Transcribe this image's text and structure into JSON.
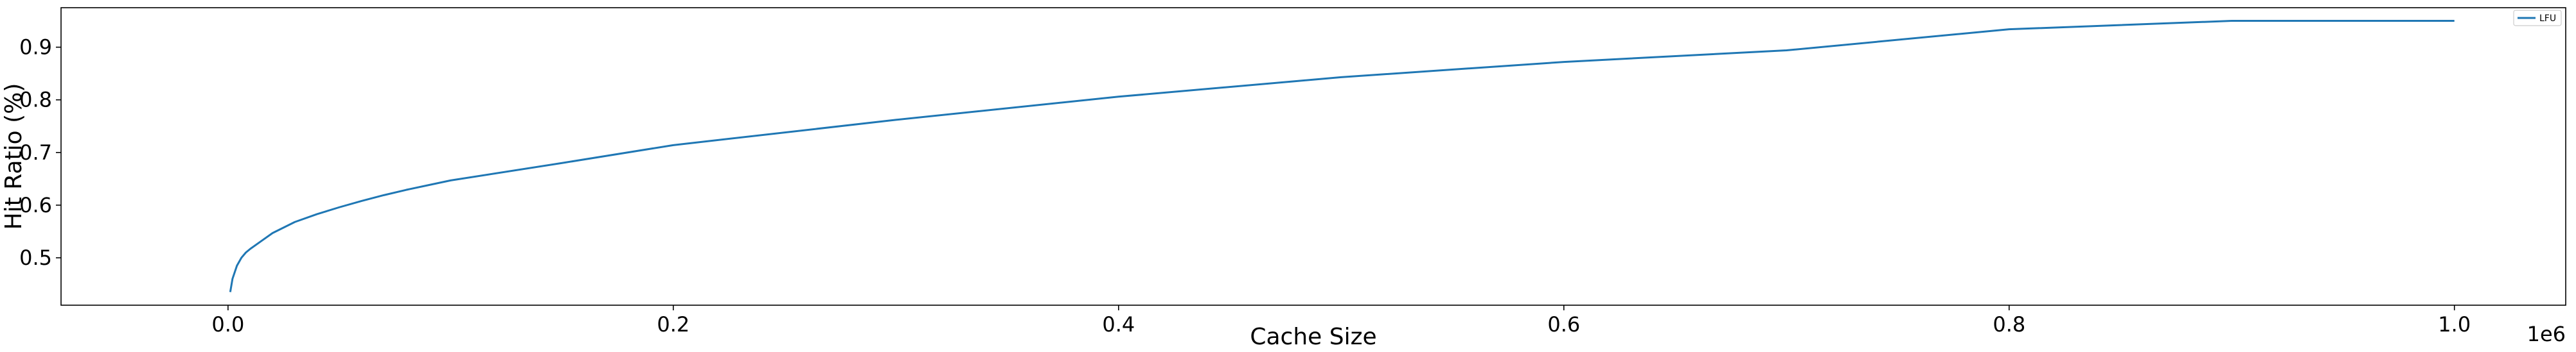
{
  "chart_data": {
    "type": "line",
    "title": "",
    "xlabel": "Cache Size",
    "ylabel": "Hit Ratio (%)",
    "x_offset_label": "1e6",
    "xlim": [
      -75000,
      1050000
    ],
    "ylim": [
      0.41,
      0.975
    ],
    "x_ticks": [
      0.0,
      0.2,
      0.4,
      0.6,
      0.8,
      1.0
    ],
    "x_tick_labels": [
      "0.0",
      "0.2",
      "0.4",
      "0.6",
      "0.8",
      "1.0"
    ],
    "y_ticks": [
      0.5,
      0.6,
      0.7,
      0.8,
      0.9
    ],
    "y_tick_labels": [
      "0.5",
      "0.6",
      "0.7",
      "0.8",
      "0.9"
    ],
    "grid": false,
    "legend_position": "top-right",
    "series": [
      {
        "name": "LFU",
        "color": "#1f77b4",
        "x": [
          1000,
          2000,
          4000,
          6000,
          8000,
          10000,
          15000,
          20000,
          30000,
          40000,
          50000,
          60000,
          70000,
          80000,
          90000,
          100000,
          150000,
          200000,
          300000,
          400000,
          500000,
          600000,
          700000,
          800000,
          900000,
          1000000
        ],
        "y": [
          0.435,
          0.46,
          0.485,
          0.5,
          0.51,
          0.517,
          0.532,
          0.547,
          0.568,
          0.583,
          0.596,
          0.608,
          0.619,
          0.629,
          0.638,
          0.647,
          0.68,
          0.714,
          0.762,
          0.806,
          0.843,
          0.872,
          0.894,
          0.934,
          0.95,
          0.95
        ]
      }
    ]
  }
}
